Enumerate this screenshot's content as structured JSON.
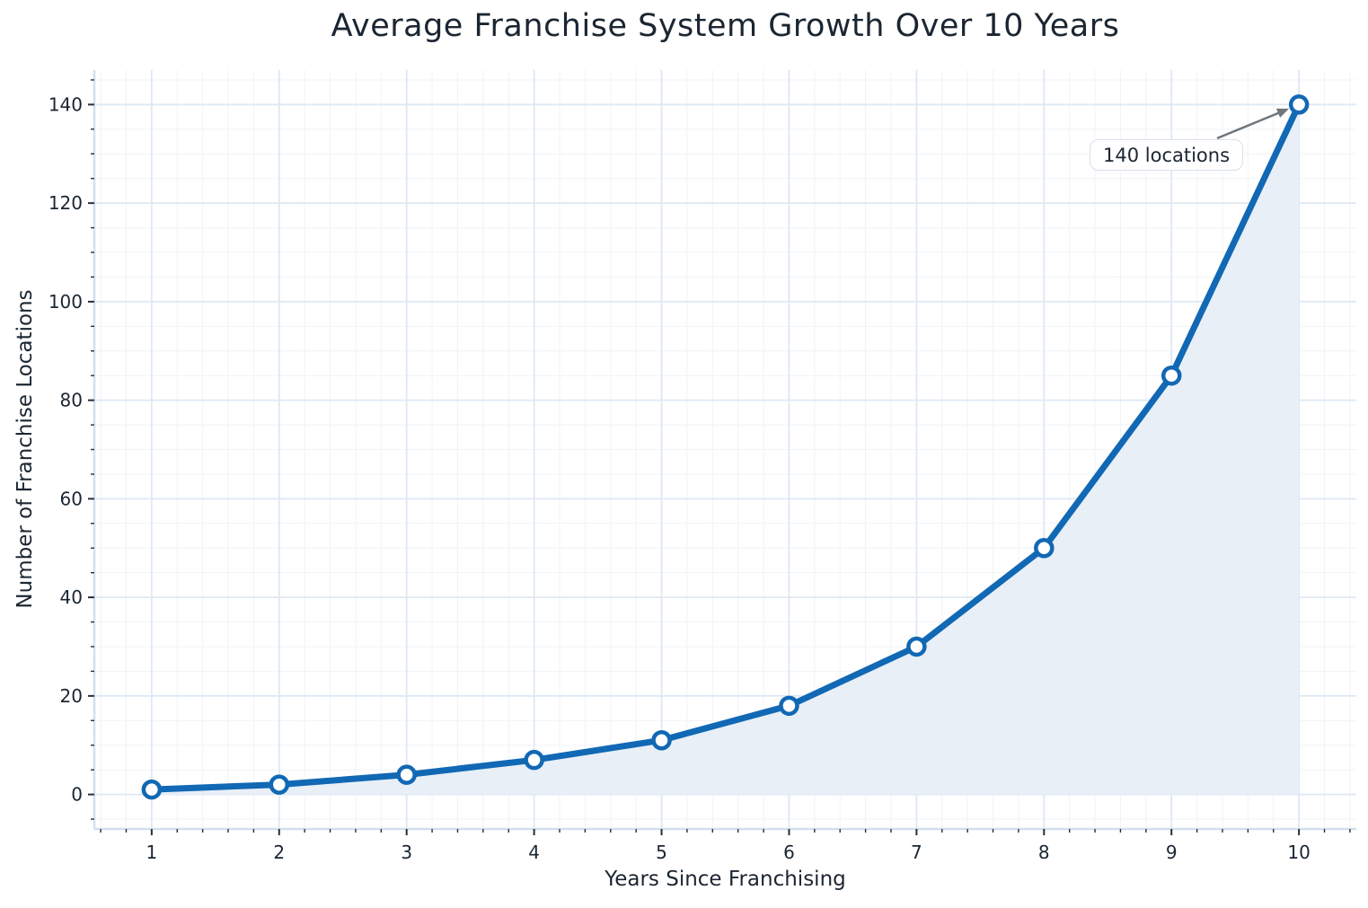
{
  "chart_data": {
    "type": "line",
    "title": "Average Franchise System Growth Over 10 Years",
    "xlabel": "Years Since Franchising",
    "ylabel": "Number of Franchise Locations",
    "x": [
      1,
      2,
      3,
      4,
      5,
      6,
      7,
      8,
      9,
      10
    ],
    "y": [
      1,
      2,
      4,
      7,
      11,
      18,
      30,
      50,
      85,
      140
    ],
    "xticks": [
      1,
      2,
      3,
      4,
      5,
      6,
      7,
      8,
      9,
      10
    ],
    "yticks": [
      0,
      20,
      40,
      60,
      80,
      100,
      120,
      140
    ],
    "xlim": [
      0.55,
      10.45
    ],
    "ylim": [
      -7,
      147
    ],
    "minor_x_step": 0.2,
    "minor_y_step": 5,
    "grid": "major+minor",
    "legend": "none",
    "area_fill_to": 0,
    "annotation": {
      "text": "140 locations",
      "target": {
        "x": 10,
        "y": 140
      }
    },
    "colors": {
      "line": "#1168b4",
      "marker_face": "#ffffff",
      "area_fill": "#e8eff7",
      "grid_major": "#dde8f4",
      "grid_minor": "#eff3f9",
      "spine": "#d3dfed",
      "tick": "#262f3b",
      "text": "#1b2632",
      "arrow": "#6f767d",
      "annotation_bg": "#ffffff",
      "annotation_border": "#d9e1eb"
    }
  }
}
